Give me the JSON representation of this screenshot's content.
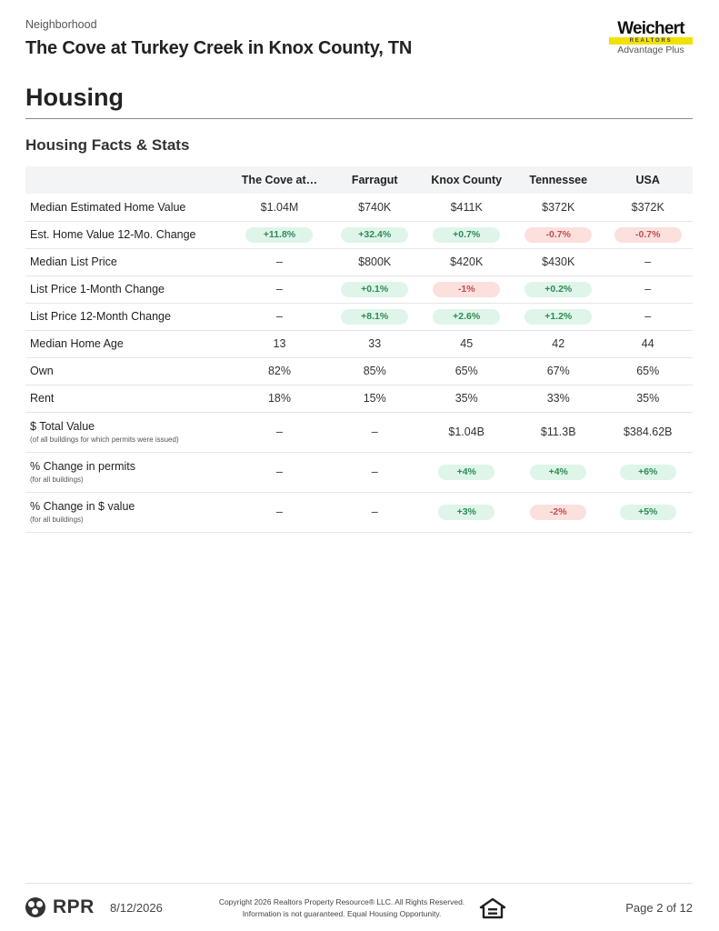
{
  "header": {
    "eyebrow": "Neighborhood",
    "title": "The Cove at Turkey Creek in Knox County, TN"
  },
  "logo": {
    "name": "Weichert",
    "bar_text": "REALTORS",
    "sub": "Advantage Plus"
  },
  "section_title": "Housing",
  "subsection_title": "Housing Facts & Stats",
  "table": {
    "columns": [
      "The Cove at…",
      "Farragut",
      "Knox County",
      "Tennessee",
      "USA"
    ],
    "rows": [
      {
        "label": "Median Estimated Home Value",
        "note": "",
        "cells": [
          {
            "v": "$1.04M"
          },
          {
            "v": "$740K"
          },
          {
            "v": "$411K"
          },
          {
            "v": "$372K"
          },
          {
            "v": "$372K"
          }
        ]
      },
      {
        "label": "Est. Home Value 12-Mo. Change",
        "note": "",
        "cells": [
          {
            "v": "+11.8%",
            "t": "pos"
          },
          {
            "v": "+32.4%",
            "t": "pos"
          },
          {
            "v": "+0.7%",
            "t": "pos"
          },
          {
            "v": "-0.7%",
            "t": "neg"
          },
          {
            "v": "-0.7%",
            "t": "neg"
          }
        ]
      },
      {
        "label": "Median List Price",
        "note": "",
        "cells": [
          {
            "v": "–"
          },
          {
            "v": "$800K"
          },
          {
            "v": "$420K"
          },
          {
            "v": "$430K"
          },
          {
            "v": "–"
          }
        ]
      },
      {
        "label": "List Price 1-Month Change",
        "note": "",
        "cells": [
          {
            "v": "–"
          },
          {
            "v": "+0.1%",
            "t": "pos"
          },
          {
            "v": "-1%",
            "t": "neg"
          },
          {
            "v": "+0.2%",
            "t": "pos"
          },
          {
            "v": "–"
          }
        ]
      },
      {
        "label": "List Price 12-Month Change",
        "note": "",
        "cells": [
          {
            "v": "–"
          },
          {
            "v": "+8.1%",
            "t": "pos"
          },
          {
            "v": "+2.6%",
            "t": "pos"
          },
          {
            "v": "+1.2%",
            "t": "pos"
          },
          {
            "v": "–"
          }
        ]
      },
      {
        "label": "Median Home Age",
        "note": "",
        "cells": [
          {
            "v": "13"
          },
          {
            "v": "33"
          },
          {
            "v": "45"
          },
          {
            "v": "42"
          },
          {
            "v": "44"
          }
        ]
      },
      {
        "label": "Own",
        "note": "",
        "cells": [
          {
            "v": "82%"
          },
          {
            "v": "85%"
          },
          {
            "v": "65%"
          },
          {
            "v": "67%"
          },
          {
            "v": "65%"
          }
        ]
      },
      {
        "label": "Rent",
        "note": "",
        "cells": [
          {
            "v": "18%"
          },
          {
            "v": "15%"
          },
          {
            "v": "35%"
          },
          {
            "v": "33%"
          },
          {
            "v": "35%"
          }
        ]
      },
      {
        "label": "$ Total Value",
        "note": "(of all buildings for which permits were issued)",
        "cells": [
          {
            "v": "–"
          },
          {
            "v": "–"
          },
          {
            "v": "$1.04B"
          },
          {
            "v": "$11.3B"
          },
          {
            "v": "$384.62B"
          }
        ]
      },
      {
        "label": "% Change in permits",
        "note": "(for all buildings)",
        "cells": [
          {
            "v": "–"
          },
          {
            "v": "–"
          },
          {
            "v": "+4%",
            "t": "pos",
            "sm": true
          },
          {
            "v": "+4%",
            "t": "pos",
            "sm": true
          },
          {
            "v": "+6%",
            "t": "pos",
            "sm": true
          }
        ]
      },
      {
        "label": "% Change in $ value",
        "note": "(for all buildings)",
        "cells": [
          {
            "v": "–"
          },
          {
            "v": "–"
          },
          {
            "v": "+3%",
            "t": "pos",
            "sm": true
          },
          {
            "v": "-2%",
            "t": "neg",
            "sm": true
          },
          {
            "v": "+5%",
            "t": "pos",
            "sm": true
          }
        ]
      }
    ]
  },
  "footer": {
    "brand": "RPR",
    "date": "8/12/2026",
    "copyright_line1": "Copyright 2026 Realtors Property Resource® LLC. All Rights Reserved.",
    "copyright_line2": "Information is not guaranteed. Equal Housing Opportunity.",
    "page": "Page 2 of 12"
  },
  "colors": {
    "positive_bg": "#dff5e9",
    "positive_text": "#2e8b57",
    "negative_bg": "#fbe0de",
    "negative_text": "#c0504d",
    "logo_bar": "#f2e100"
  },
  "icons": [
    "rpr-logo-icon",
    "equal-housing-icon"
  ]
}
